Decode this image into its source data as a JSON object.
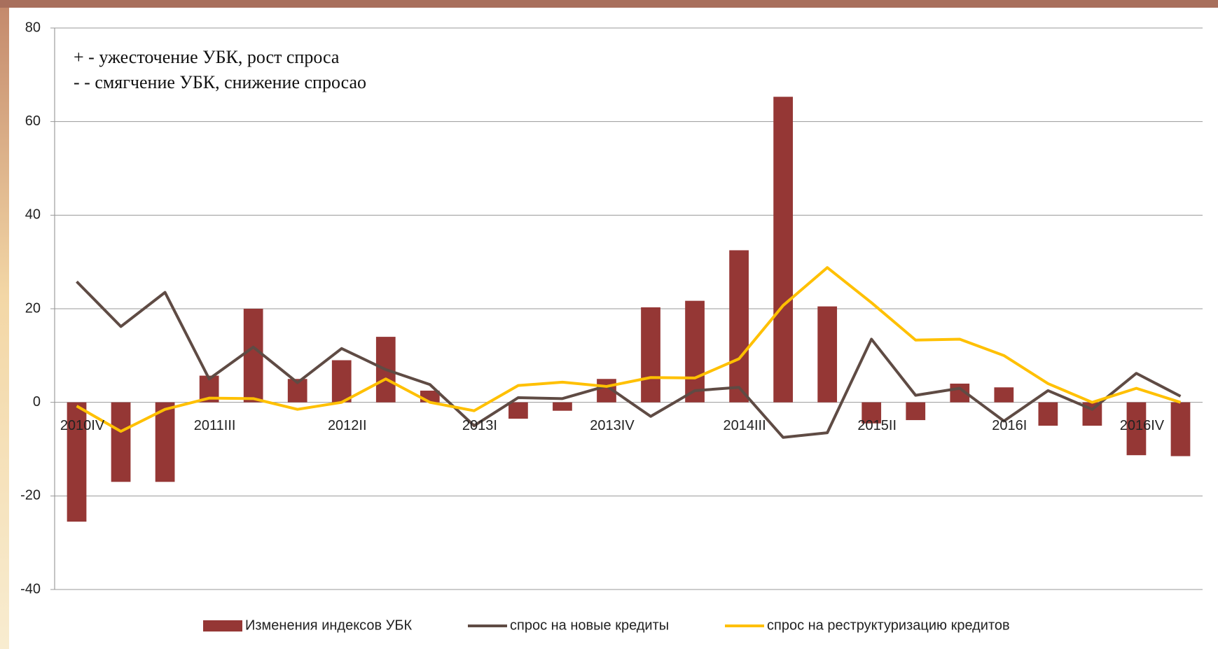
{
  "chart_data": {
    "type": "bar-line",
    "annotations": [
      "+ - ужесточение УБК, рост спроса",
      "- - смягчение УБК, снижение спросаo"
    ],
    "categories": [
      "2010IV",
      null,
      null,
      "2011III",
      null,
      null,
      "2012II",
      null,
      null,
      "2013I",
      null,
      null,
      "2013IV",
      null,
      null,
      "2014III",
      null,
      null,
      "2015II",
      null,
      null,
      "2016I",
      null,
      null,
      "2016IV",
      null
    ],
    "series": [
      {
        "name": "Изменения индексов УБК",
        "type": "bar",
        "color": "#953735",
        "values": [
          -25.5,
          -17,
          -17,
          5.7,
          20,
          5,
          9,
          14,
          2.5,
          0,
          -3.5,
          -1.8,
          5,
          20.3,
          21.7,
          32.5,
          65.3,
          20.5,
          -4.5,
          -3.8,
          4,
          3.2,
          -5,
          -5,
          -11.3,
          -11.5
        ]
      },
      {
        "name": "спрос на новые кредиты",
        "type": "line",
        "color": "#5f4b44",
        "values": [
          25.8,
          16.2,
          23.5,
          5,
          11.8,
          4.2,
          11.5,
          7,
          3.8,
          -5,
          1,
          0.8,
          3.5,
          -3,
          2.5,
          3.2,
          -7.5,
          -6.5,
          13.5,
          1.5,
          3,
          -4,
          2.5,
          -1.5,
          6.2,
          1.3
        ]
      },
      {
        "name": "спрос на реструктуризацию кредитов",
        "type": "line",
        "color": "#ffc000",
        "values": [
          -0.8,
          -6.2,
          -1.5,
          0.9,
          0.8,
          -1.5,
          0,
          5,
          0,
          -1.8,
          3.6,
          4.3,
          3.4,
          5.3,
          5.2,
          9.3,
          20.7,
          28.8,
          21.3,
          13.3,
          13.5,
          10,
          4,
          0,
          3,
          0
        ]
      }
    ],
    "ylim": [
      -40,
      80
    ],
    "yticks": [
      -40,
      -20,
      0,
      20,
      40,
      60,
      80
    ],
    "grid": true,
    "legend": "bottom"
  }
}
